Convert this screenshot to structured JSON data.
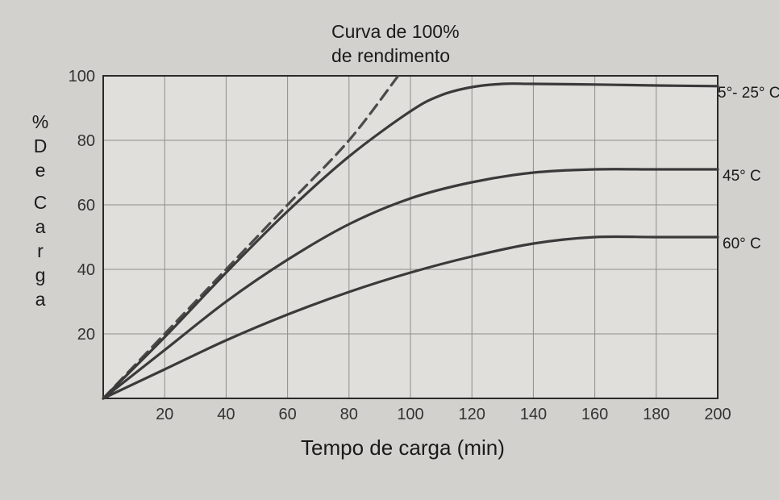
{
  "chart_data": {
    "type": "line",
    "title": "Curva de 100% de rendimento",
    "title_lines": [
      "Curva de 100%",
      "de rendimento"
    ],
    "xlabel": "Tempo de carga (min)",
    "ylabel_chars": [
      "%",
      "D",
      "e",
      "C",
      "a",
      "r",
      "g",
      "a"
    ],
    "x_ticks": [
      20,
      40,
      60,
      80,
      100,
      120,
      140,
      160,
      180,
      200
    ],
    "y_ticks": [
      20,
      40,
      60,
      80,
      100
    ],
    "xlim": [
      0,
      200
    ],
    "ylim": [
      0,
      100
    ],
    "grid": true,
    "series": [
      {
        "name": "Curva de 100% de rendimento",
        "style": "dashed",
        "x": [
          0,
          20,
          40,
          60,
          80,
          96
        ],
        "y": [
          0,
          20,
          40,
          60,
          80,
          100
        ]
      },
      {
        "name": "5°- 25° C",
        "style": "solid",
        "x": [
          0,
          20,
          40,
          60,
          80,
          100,
          110,
          120,
          130,
          140,
          160,
          180,
          200
        ],
        "y": [
          0,
          19,
          39,
          58,
          75,
          89,
          94,
          96.5,
          97.5,
          97.5,
          97.3,
          97,
          96.8
        ]
      },
      {
        "name": "45° C",
        "style": "solid",
        "x": [
          0,
          20,
          40,
          60,
          80,
          100,
          120,
          140,
          160,
          180,
          200
        ],
        "y": [
          0,
          15,
          30,
          43,
          54,
          62,
          67,
          70,
          71,
          71,
          71
        ]
      },
      {
        "name": "60° C",
        "style": "solid",
        "x": [
          0,
          20,
          40,
          60,
          80,
          100,
          120,
          140,
          160,
          180,
          200
        ],
        "y": [
          0,
          9,
          18,
          26,
          33,
          39,
          44,
          48,
          50,
          50,
          50
        ]
      }
    ]
  }
}
